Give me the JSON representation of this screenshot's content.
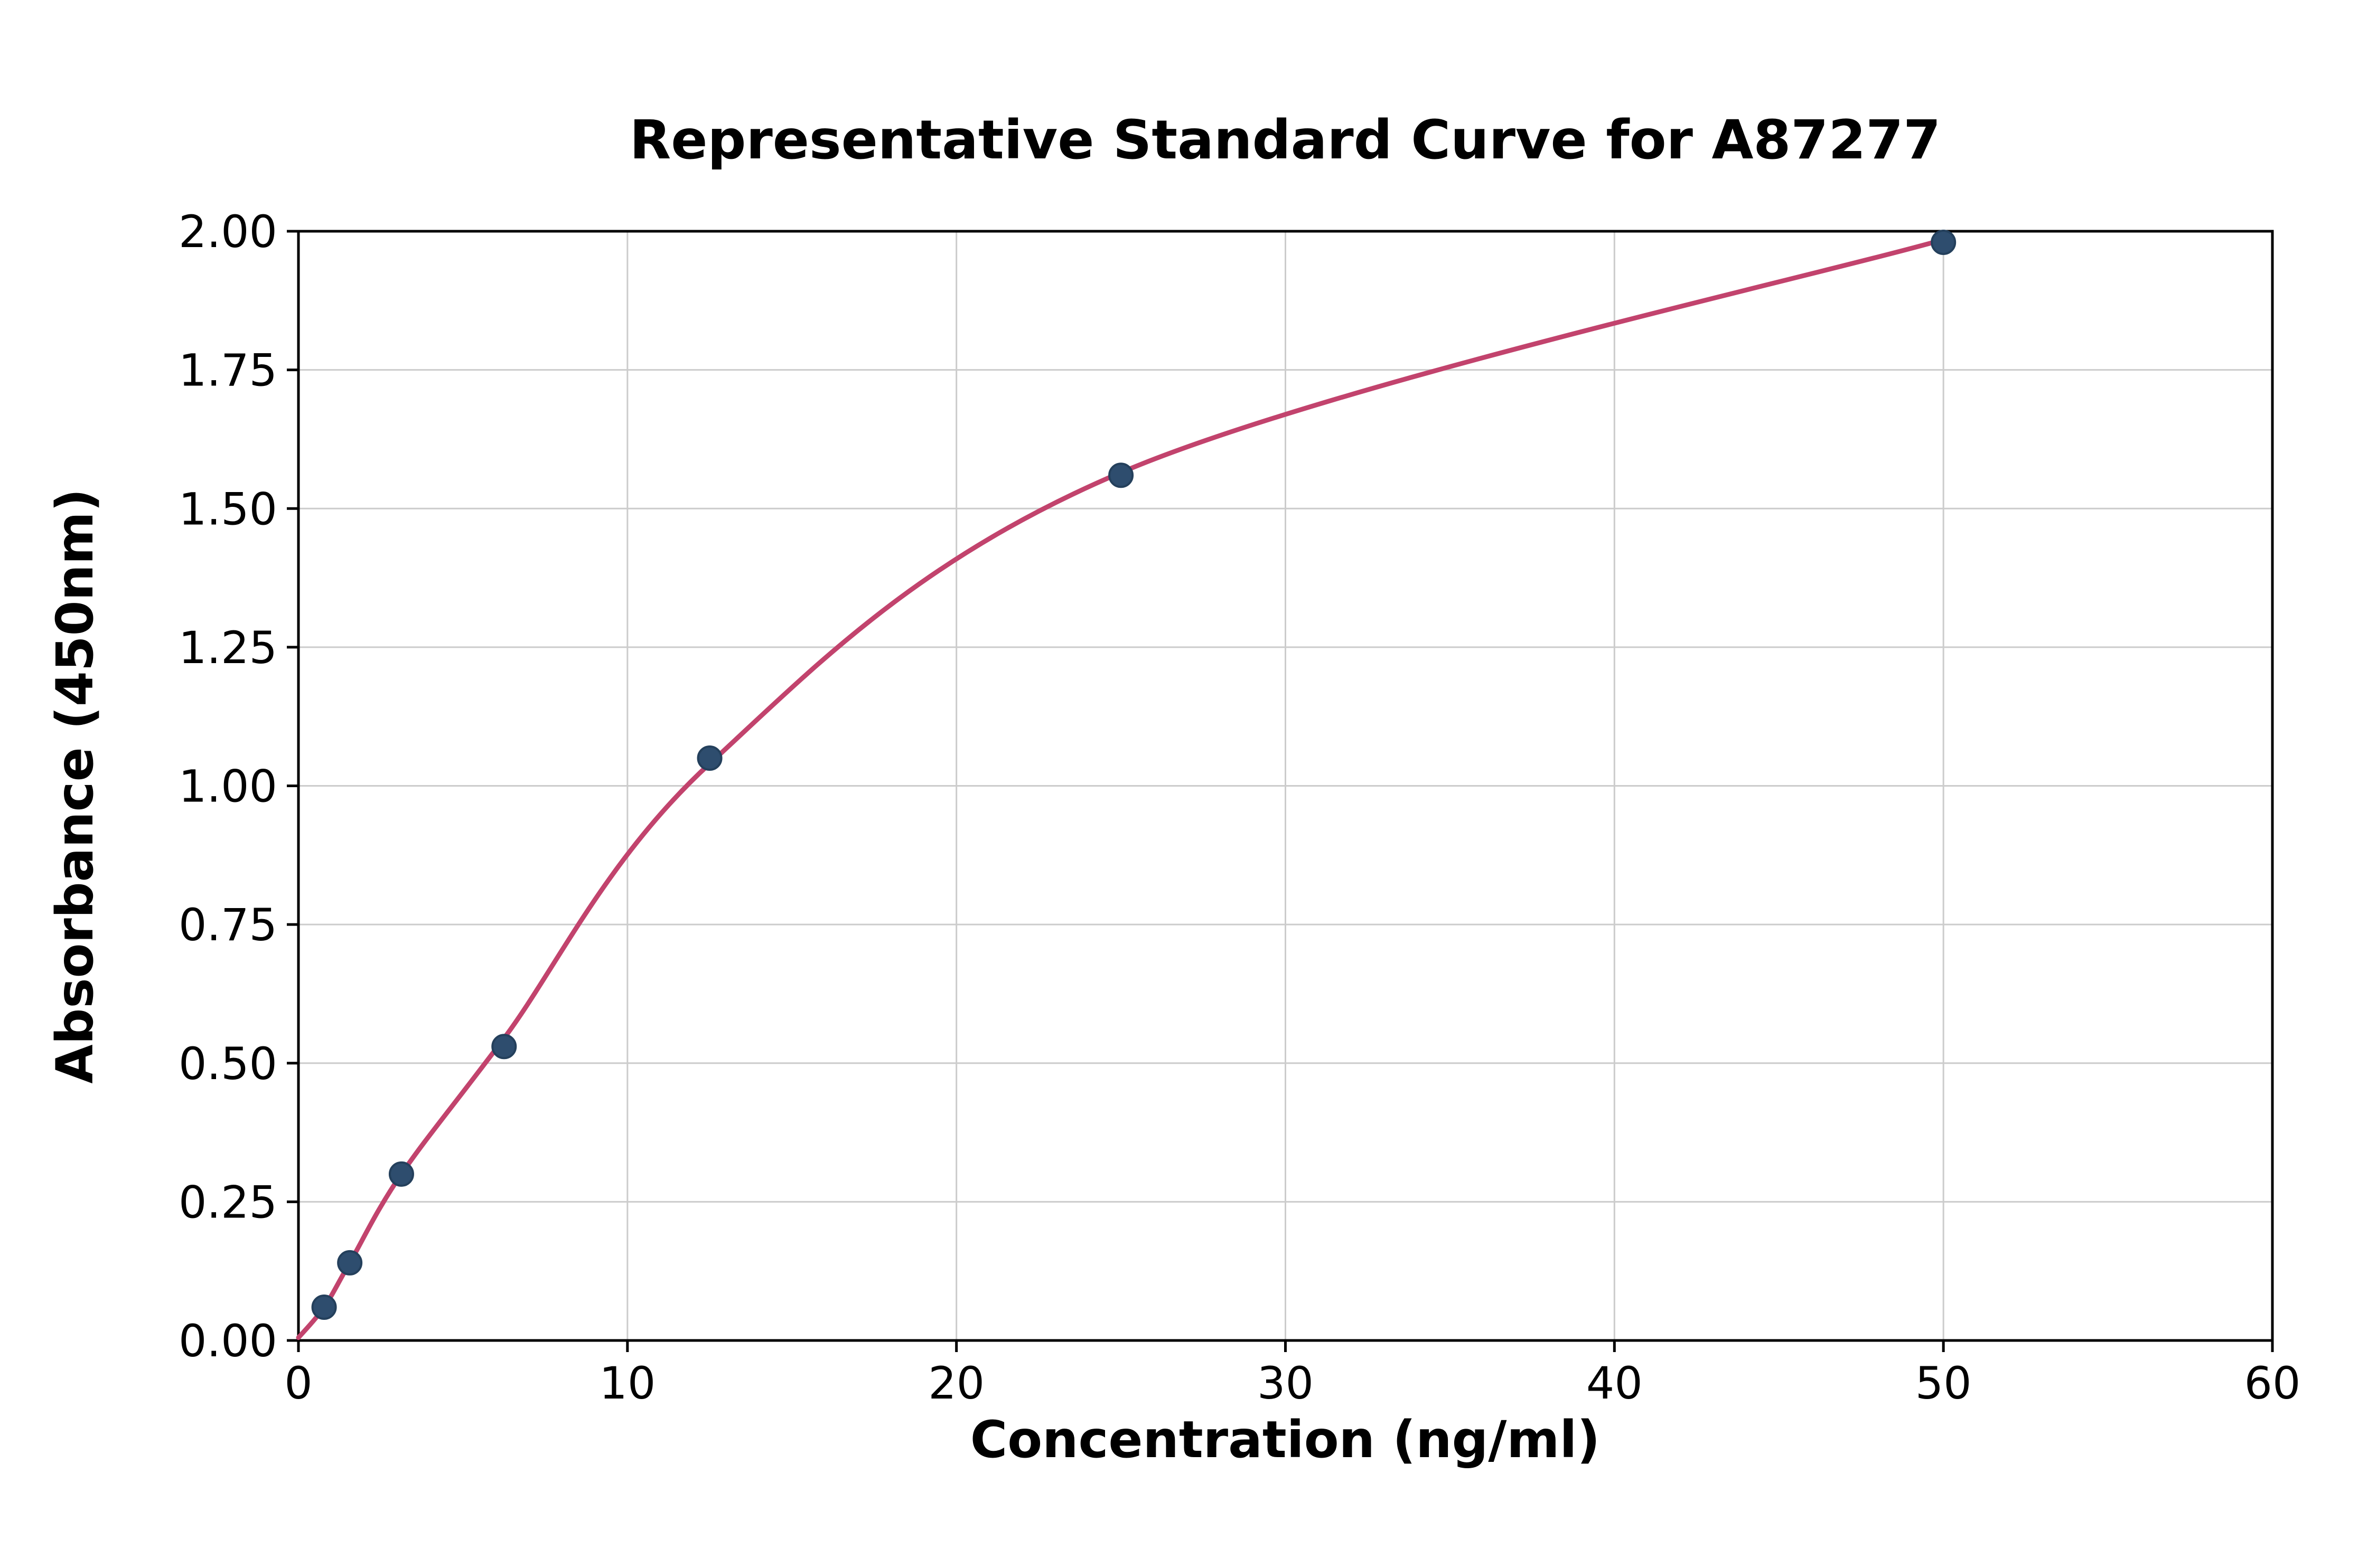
{
  "chart_data": {
    "type": "scatter",
    "title": "Representative Standard Curve for A87277",
    "xlabel": "Concentration (ng/ml)",
    "ylabel": "Absorbance (450nm)",
    "xlim": [
      0,
      60
    ],
    "ylim": [
      0,
      2.0
    ],
    "x_ticks": [
      0,
      10,
      20,
      30,
      40,
      50,
      60
    ],
    "x_tick_labels": [
      "0",
      "10",
      "20",
      "30",
      "40",
      "50",
      "60"
    ],
    "y_ticks": [
      0,
      0.25,
      0.5,
      0.75,
      1.0,
      1.25,
      1.5,
      1.75,
      2.0
    ],
    "y_tick_labels": [
      "0.00",
      "0.25",
      "0.50",
      "0.75",
      "1.00",
      "1.25",
      "1.50",
      "1.75",
      "2.00"
    ],
    "grid": true,
    "legend": "none",
    "points": [
      {
        "x": 0.78,
        "y": 0.06
      },
      {
        "x": 1.56,
        "y": 0.14
      },
      {
        "x": 3.13,
        "y": 0.3
      },
      {
        "x": 6.25,
        "y": 0.53
      },
      {
        "x": 12.5,
        "y": 1.05
      },
      {
        "x": 25,
        "y": 1.56
      },
      {
        "x": 50,
        "y": 1.98
      }
    ],
    "curve": {
      "description": "four-parameter-logistic-fit",
      "points": [
        [
          0,
          0.005
        ],
        [
          0.78,
          0.06
        ],
        [
          1.56,
          0.14
        ],
        [
          3.13,
          0.3
        ],
        [
          6.25,
          0.545
        ],
        [
          12.5,
          1.04
        ],
        [
          25,
          1.565
        ],
        [
          50,
          1.985
        ]
      ]
    },
    "colors": {
      "curve": "#c2436d",
      "marker_fill": "#2e4d6e",
      "marker_edge": "#24405c",
      "grid": "#cccccc",
      "axis": "#000000",
      "background": "#ffffff"
    }
  }
}
